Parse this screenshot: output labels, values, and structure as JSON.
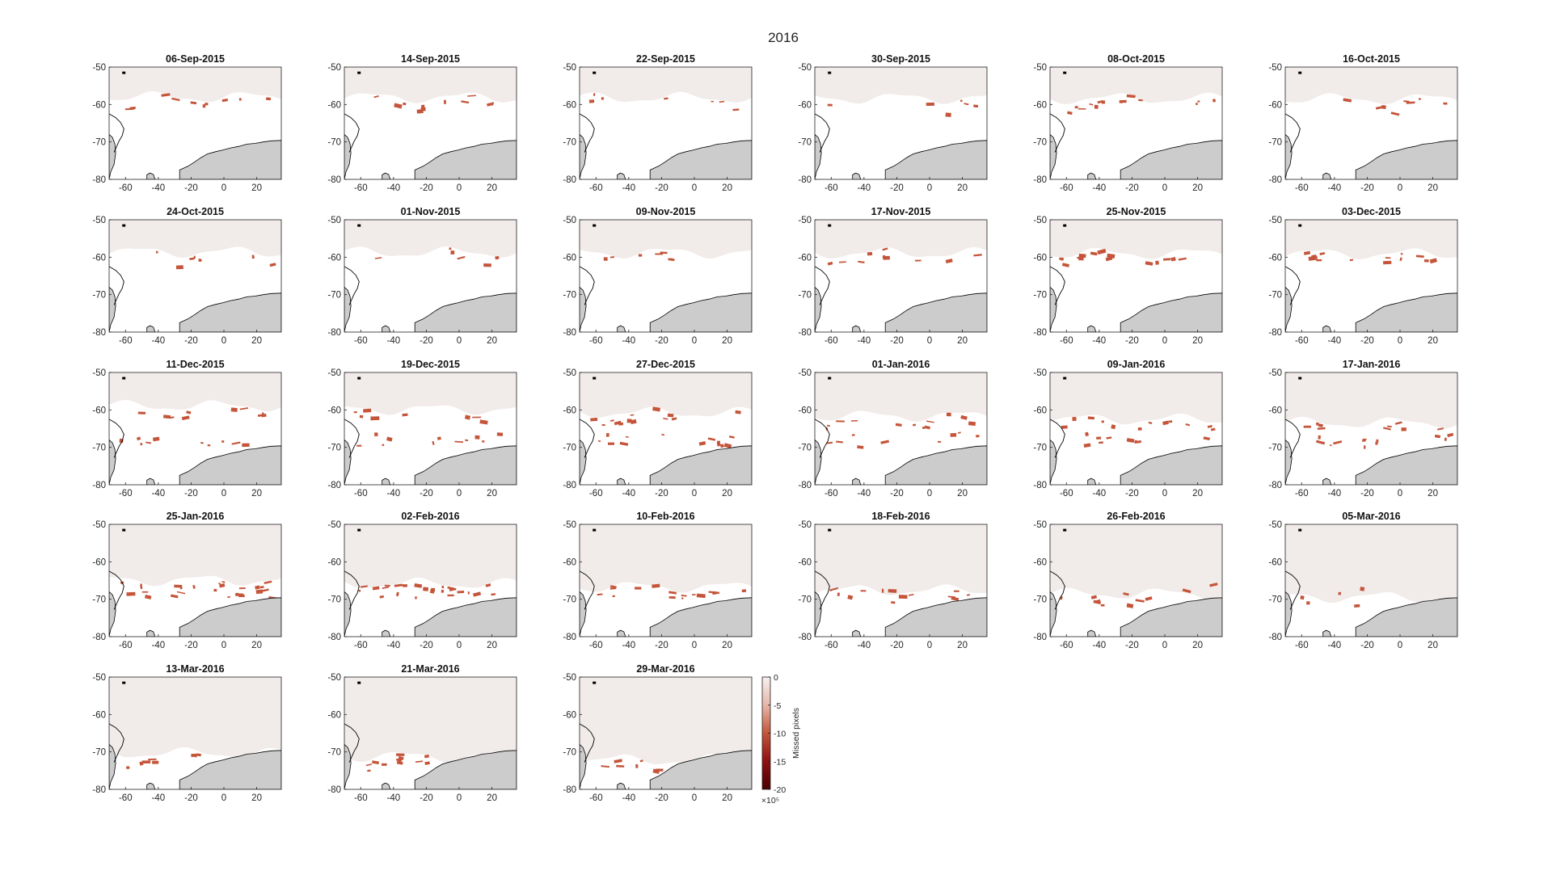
{
  "figure": {
    "title": "2016"
  },
  "colors": {
    "ocean_open": "#f1ebe9",
    "sea_ice": "#ffffff",
    "land": "#cccccc",
    "coast": "#000000",
    "missed": "#c4553a",
    "colormap": [
      "#4a0000",
      "#8e1010",
      "#c4553a",
      "#e7b6a8",
      "#f7f1f0"
    ]
  },
  "chart_data": {
    "type": "heatmap",
    "description_type": "small-multiple maps",
    "xlim": [
      -70,
      35
    ],
    "ylim": [
      -80,
      -50
    ],
    "xticks": [
      "-60",
      "-40",
      "-20",
      "0",
      "20"
    ],
    "xtick_values": [
      -60,
      -40,
      -20,
      0,
      20
    ],
    "yticks": [
      "-50",
      "-60",
      "-70",
      "-80"
    ],
    "ytick_values": [
      -50,
      -60,
      -70,
      -80
    ],
    "panels": [
      {
        "date": "06-Sep-2015"
      },
      {
        "date": "14-Sep-2015"
      },
      {
        "date": "22-Sep-2015"
      },
      {
        "date": "30-Sep-2015"
      },
      {
        "date": "08-Oct-2015"
      },
      {
        "date": "16-Oct-2015"
      },
      {
        "date": "24-Oct-2015"
      },
      {
        "date": "01-Nov-2015"
      },
      {
        "date": "09-Nov-2015"
      },
      {
        "date": "17-Nov-2015"
      },
      {
        "date": "25-Nov-2015"
      },
      {
        "date": "03-Dec-2015"
      },
      {
        "date": "11-Dec-2015"
      },
      {
        "date": "19-Dec-2015"
      },
      {
        "date": "27-Dec-2015"
      },
      {
        "date": "01-Jan-2016"
      },
      {
        "date": "09-Jan-2016"
      },
      {
        "date": "17-Jan-2016"
      },
      {
        "date": "25-Jan-2016"
      },
      {
        "date": "02-Feb-2016"
      },
      {
        "date": "10-Feb-2016"
      },
      {
        "date": "18-Feb-2016"
      },
      {
        "date": "26-Feb-2016"
      },
      {
        "date": "05-Mar-2016"
      },
      {
        "date": "13-Mar-2016"
      },
      {
        "date": "21-Mar-2016"
      },
      {
        "date": "29-Mar-2016"
      }
    ],
    "colorbar": {
      "label": "Missed pixels",
      "ticks": [
        "0",
        "-5",
        "-10",
        "-15",
        "-20"
      ],
      "tick_values": [
        0,
        -5,
        -10,
        -15,
        -20
      ],
      "range": [
        -20,
        0
      ],
      "exponent": "×10⁵"
    }
  }
}
